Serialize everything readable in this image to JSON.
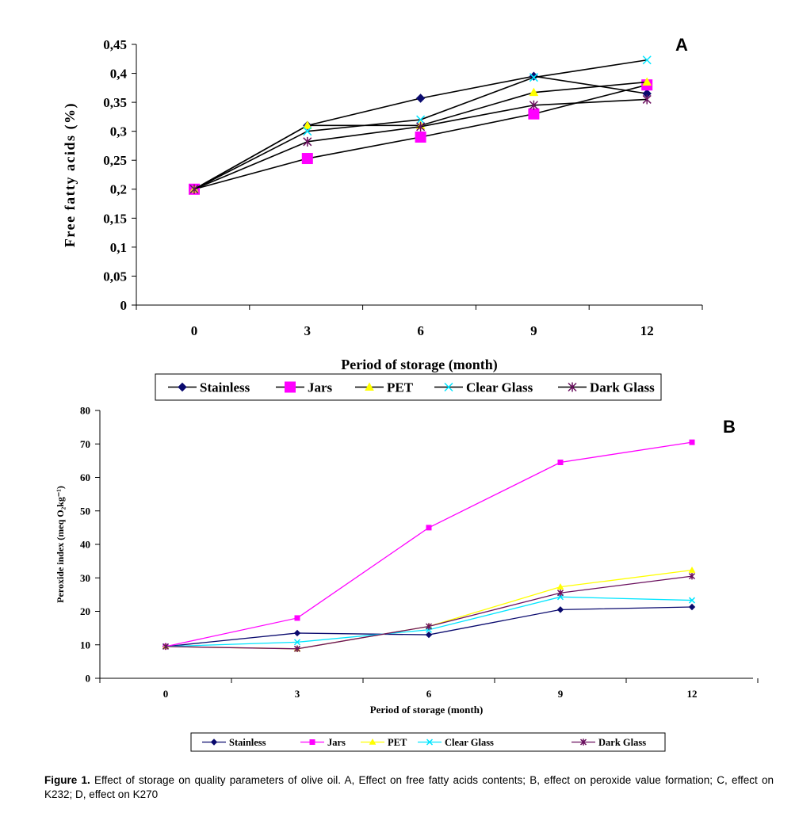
{
  "chart_data": [
    {
      "type": "line",
      "panel_label": "A",
      "xlabel": "Period of storage (month)",
      "ylabel": "Free fatty acids (%)",
      "categories": [
        "0",
        "3",
        "6",
        "9",
        "12"
      ],
      "ylim": [
        0,
        0.45
      ],
      "yticks": [
        "0",
        "0,05",
        "0,1",
        "0,15",
        "0,2",
        "0,25",
        "0,3",
        "0,35",
        "0,4",
        "0,45"
      ],
      "legend_position": "bottom",
      "series": [
        {
          "name": "Stainless",
          "color": "#0a0a6e",
          "marker": "diamond",
          "values": [
            0.2,
            0.31,
            0.357,
            0.395,
            0.365
          ]
        },
        {
          "name": "Jars",
          "color": "#ff00ff",
          "marker": "square",
          "values": [
            0.2,
            0.253,
            0.29,
            0.33,
            0.38
          ]
        },
        {
          "name": "PET",
          "color": "#ffff00",
          "marker": "triangle",
          "values": [
            0.2,
            0.31,
            0.31,
            0.367,
            0.385
          ]
        },
        {
          "name": "Clear Glass",
          "color": "#00e5ff",
          "marker": "x",
          "values": [
            0.2,
            0.3,
            0.32,
            0.393,
            0.423
          ]
        },
        {
          "name": "Dark Glass",
          "color": "#6a0f5e",
          "marker": "star",
          "values": [
            0.2,
            0.282,
            0.308,
            0.345,
            0.355
          ]
        }
      ]
    },
    {
      "type": "line",
      "panel_label": "B",
      "xlabel": "Period of storage (month)",
      "ylabel": "Peroxide index (meq O₂kg⁻¹)",
      "categories": [
        "0",
        "3",
        "6",
        "9",
        "12"
      ],
      "ylim": [
        0,
        80
      ],
      "yticks": [
        "0",
        "10",
        "20",
        "30",
        "40",
        "50",
        "60",
        "70",
        "80"
      ],
      "legend_position": "bottom",
      "series": [
        {
          "name": "Stainless",
          "color": "#0a0a6e",
          "marker": "diamond",
          "values": [
            9.5,
            13.5,
            13.0,
            20.5,
            21.3
          ]
        },
        {
          "name": "Jars",
          "color": "#ff00ff",
          "marker": "square",
          "values": [
            9.5,
            18.0,
            45.0,
            64.5,
            70.5
          ]
        },
        {
          "name": "PET",
          "color": "#ffff00",
          "marker": "triangle",
          "values": [
            9.5,
            8.8,
            15.5,
            27.3,
            32.3
          ]
        },
        {
          "name": "Clear Glass",
          "color": "#00e5ff",
          "marker": "x",
          "values": [
            9.5,
            10.8,
            14.5,
            24.3,
            23.3
          ]
        },
        {
          "name": "Dark Glass",
          "color": "#6a0f5e",
          "marker": "star",
          "values": [
            9.5,
            8.8,
            15.5,
            25.5,
            30.5
          ]
        }
      ]
    }
  ],
  "caption": {
    "label": "Figure 1.",
    "text": " Effect of storage on quality parameters of olive oil. A, Effect on free fatty acids contents; B, effect on peroxide value formation; C, effect on K232; D, effect on K270"
  }
}
